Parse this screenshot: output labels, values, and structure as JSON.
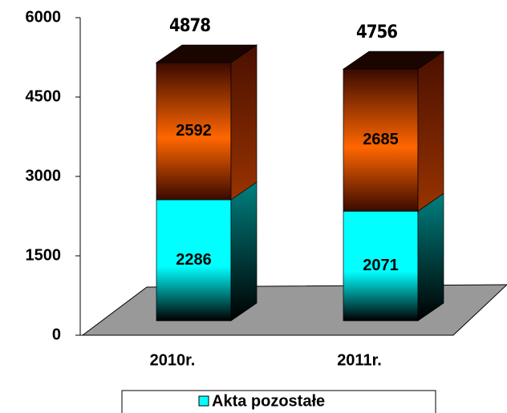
{
  "chart_data": {
    "type": "bar3d_stacked",
    "categories": [
      "2010r.",
      "2011r."
    ],
    "series": [
      {
        "name": "Akta pozostałe",
        "color": "#00ffff",
        "values": [
          2286,
          2071
        ]
      },
      {
        "color": "#ff6600",
        "values": [
          2592,
          2685
        ]
      }
    ],
    "totals": [
      4878,
      4756
    ],
    "ylim": [
      0,
      6000
    ],
    "yticks": [
      0,
      1500,
      3000,
      4500,
      6000
    ]
  }
}
